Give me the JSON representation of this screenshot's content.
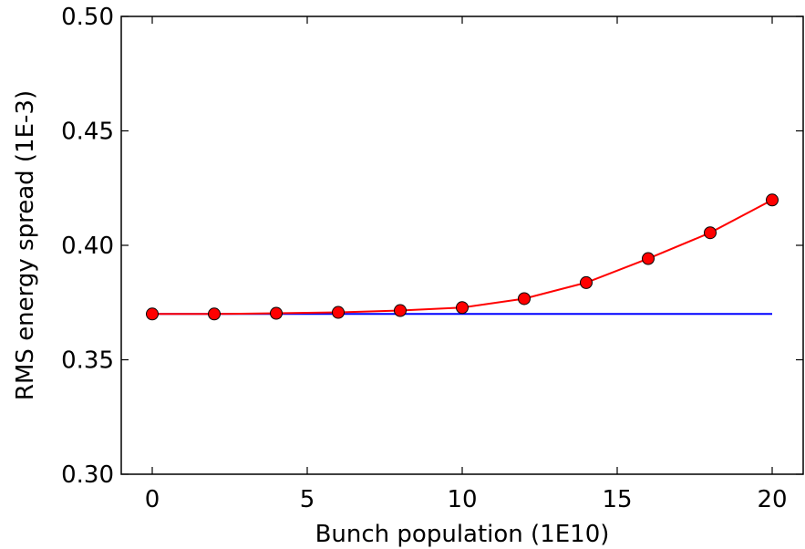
{
  "chart_data": {
    "type": "line",
    "title": "",
    "xlabel": "Bunch population (1E10)",
    "ylabel": "RMS energy spread (1E-3)",
    "xlim": [
      -1,
      21
    ],
    "ylim": [
      0.3,
      0.5
    ],
    "xticks": [
      0,
      5,
      10,
      15,
      20
    ],
    "yticks": [
      0.3,
      0.35,
      0.4,
      0.45,
      0.5
    ],
    "xtick_labels": [
      "0",
      "5",
      "10",
      "15",
      "20"
    ],
    "ytick_labels": [
      "0.30",
      "0.35",
      "0.40",
      "0.45",
      "0.50"
    ],
    "grid": false,
    "legend": "none",
    "series": [
      {
        "color": "#ff0000",
        "marker": "circle",
        "marker_fill": "#ff0000",
        "x": [
          0,
          2,
          4,
          6,
          8,
          10,
          12,
          14,
          16,
          18,
          20
        ],
        "y": [
          0.37,
          0.37,
          0.3703,
          0.3707,
          0.3715,
          0.3728,
          0.3767,
          0.3837,
          0.3942,
          0.4055,
          0.4198
        ]
      },
      {
        "color": "#0000ff",
        "marker": "none",
        "x": [
          0,
          20
        ],
        "y": [
          0.37,
          0.37
        ]
      }
    ]
  }
}
